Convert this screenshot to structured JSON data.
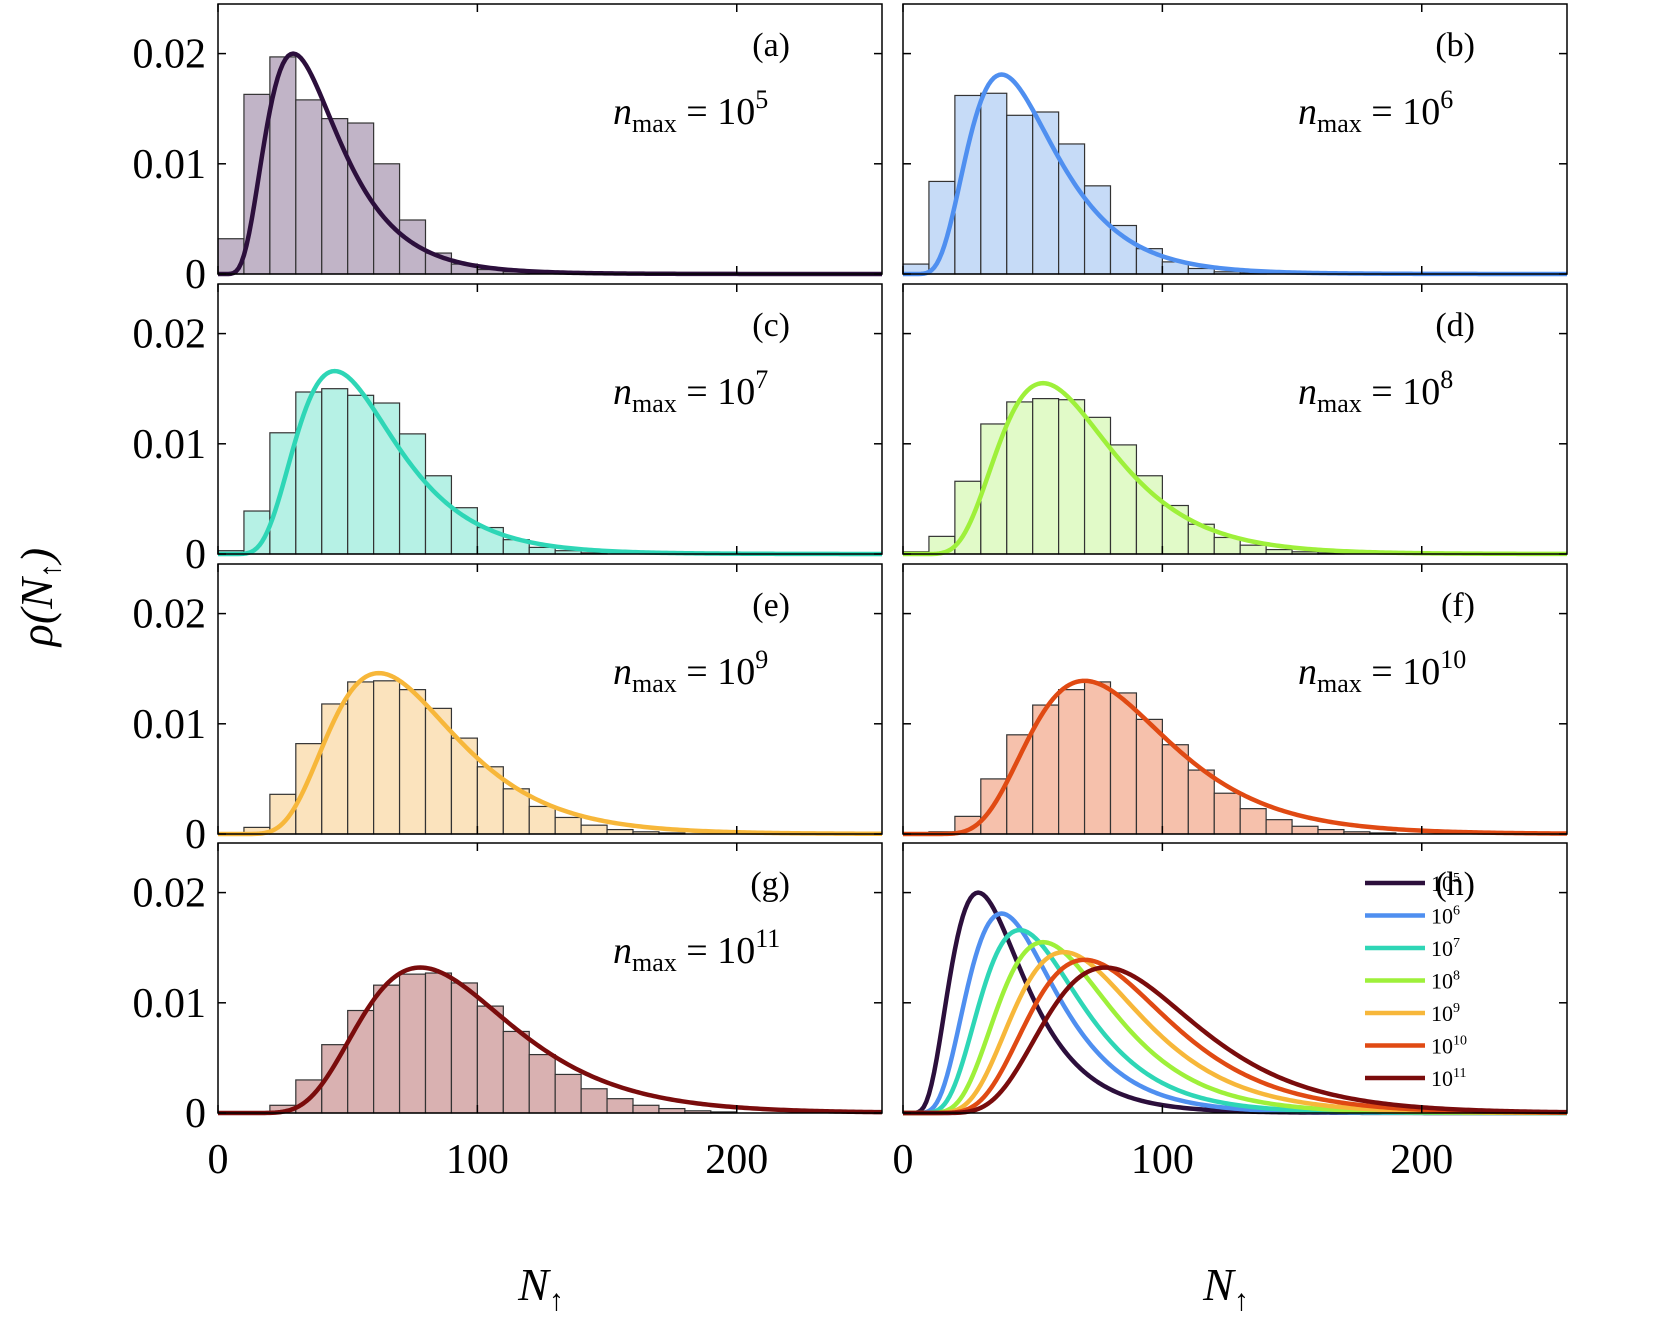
{
  "chart_data": {
    "type": "bar",
    "figure": {
      "ylabel": "ρ(N↑)",
      "xlabel": "N↑",
      "x_ticks": [
        0,
        100,
        200
      ],
      "y_ticks": [
        "0",
        "0.01",
        "0.02"
      ],
      "xlim": [
        0,
        256
      ],
      "ylim": [
        0,
        0.0245
      ],
      "bin_width": 10,
      "bin_centers": [
        5,
        15,
        25,
        35,
        45,
        55,
        65,
        75,
        85,
        95,
        105,
        115,
        125,
        135,
        145,
        155,
        165,
        175,
        185,
        195
      ]
    },
    "panels": [
      {
        "id": "a",
        "tag": "(a)",
        "nmax_base": "10",
        "nmax_exp": "5",
        "color": "#2c0f3c",
        "fill": "#c1b4c7",
        "curve_peak": 29,
        "curve_sigma": 0.48,
        "bars": [
          0.0032,
          0.0163,
          0.0197,
          0.0158,
          0.0141,
          0.0137,
          0.01,
          0.0049,
          0.0019,
          0.0009,
          0.0004,
          0.0002,
          0,
          0,
          0,
          0,
          0,
          0,
          0,
          0
        ]
      },
      {
        "id": "b",
        "tag": "(b)",
        "nmax_base": "10",
        "nmax_exp": "6",
        "color": "#4f8ff0",
        "fill": "#c6dbf7",
        "curve_peak": 38,
        "curve_sigma": 0.44,
        "bars": [
          0.0009,
          0.0084,
          0.0162,
          0.0164,
          0.0144,
          0.0147,
          0.0118,
          0.008,
          0.0044,
          0.0023,
          0.0011,
          0.0005,
          0.0002,
          0.0001,
          0,
          0,
          0,
          0,
          0,
          0
        ]
      },
      {
        "id": "c",
        "tag": "(c)",
        "nmax_base": "10",
        "nmax_exp": "7",
        "color": "#2ed6b6",
        "fill": "#b6f1e5",
        "curve_peak": 45,
        "curve_sigma": 0.42,
        "bars": [
          0.0003,
          0.0039,
          0.011,
          0.0147,
          0.015,
          0.0144,
          0.0137,
          0.0109,
          0.0071,
          0.0042,
          0.0024,
          0.0013,
          0.0006,
          0.0003,
          0.0001,
          0,
          0,
          0,
          0,
          0
        ]
      },
      {
        "id": "d",
        "tag": "(d)",
        "nmax_base": "10",
        "nmax_exp": "8",
        "color": "#9ef03a",
        "fill": "#e1fac8",
        "curve_peak": 54,
        "curve_sigma": 0.4,
        "bars": [
          0.0002,
          0.0016,
          0.0066,
          0.0118,
          0.0138,
          0.0141,
          0.014,
          0.0124,
          0.0099,
          0.0071,
          0.0044,
          0.0027,
          0.0015,
          0.0008,
          0.0004,
          0.0002,
          0.0001,
          0,
          0,
          0
        ]
      },
      {
        "id": "e",
        "tag": "(e)",
        "nmax_base": "10",
        "nmax_exp": "9",
        "color": "#f7b73a",
        "fill": "#fbe3bd",
        "curve_peak": 62,
        "curve_sigma": 0.39,
        "bars": [
          0,
          0.0006,
          0.0036,
          0.0082,
          0.0118,
          0.0138,
          0.0139,
          0.0131,
          0.0114,
          0.0087,
          0.0061,
          0.0041,
          0.0025,
          0.0015,
          0.0008,
          0.0004,
          0.0002,
          0.0001,
          0,
          0
        ]
      },
      {
        "id": "f",
        "tag": "(f)",
        "nmax_base": "10",
        "nmax_exp": "10",
        "color": "#e04a13",
        "fill": "#f6c1ac",
        "curve_peak": 70,
        "curve_sigma": 0.38,
        "bars": [
          0,
          0.0002,
          0.0016,
          0.005,
          0.009,
          0.0117,
          0.0131,
          0.0138,
          0.0128,
          0.0104,
          0.0081,
          0.0058,
          0.0037,
          0.0023,
          0.0013,
          0.0007,
          0.0004,
          0.0002,
          0.0001,
          0
        ]
      },
      {
        "id": "g",
        "tag": "(g)",
        "nmax_base": "10",
        "nmax_exp": "11",
        "color": "#7a0c0c",
        "fill": "#d9b1b1",
        "curve_peak": 78,
        "curve_sigma": 0.37,
        "bars": [
          0,
          0.0001,
          0.0007,
          0.003,
          0.0062,
          0.0093,
          0.0116,
          0.0126,
          0.0127,
          0.0118,
          0.0097,
          0.0074,
          0.0053,
          0.0035,
          0.0022,
          0.0013,
          0.0007,
          0.0004,
          0.0002,
          0.0001
        ]
      }
    ],
    "comparison_panel": {
      "id": "h",
      "tag": "(h)",
      "type": "line",
      "legend": [
        {
          "base": "10",
          "exp": "5",
          "color": "#2c0f3c"
        },
        {
          "base": "10",
          "exp": "6",
          "color": "#4f8ff0"
        },
        {
          "base": "10",
          "exp": "7",
          "color": "#2ed6b6"
        },
        {
          "base": "10",
          "exp": "8",
          "color": "#9ef03a"
        },
        {
          "base": "10",
          "exp": "9",
          "color": "#f7b73a"
        },
        {
          "base": "10",
          "exp": "10",
          "color": "#e04a13"
        },
        {
          "base": "10",
          "exp": "11",
          "color": "#7a0c0c"
        }
      ]
    },
    "nmax_label": "n",
    "nmax_sub": "max",
    "curve_peaks": [
      0.02,
      0.0181,
      0.0166,
      0.0155,
      0.0146,
      0.0139,
      0.0132
    ]
  }
}
